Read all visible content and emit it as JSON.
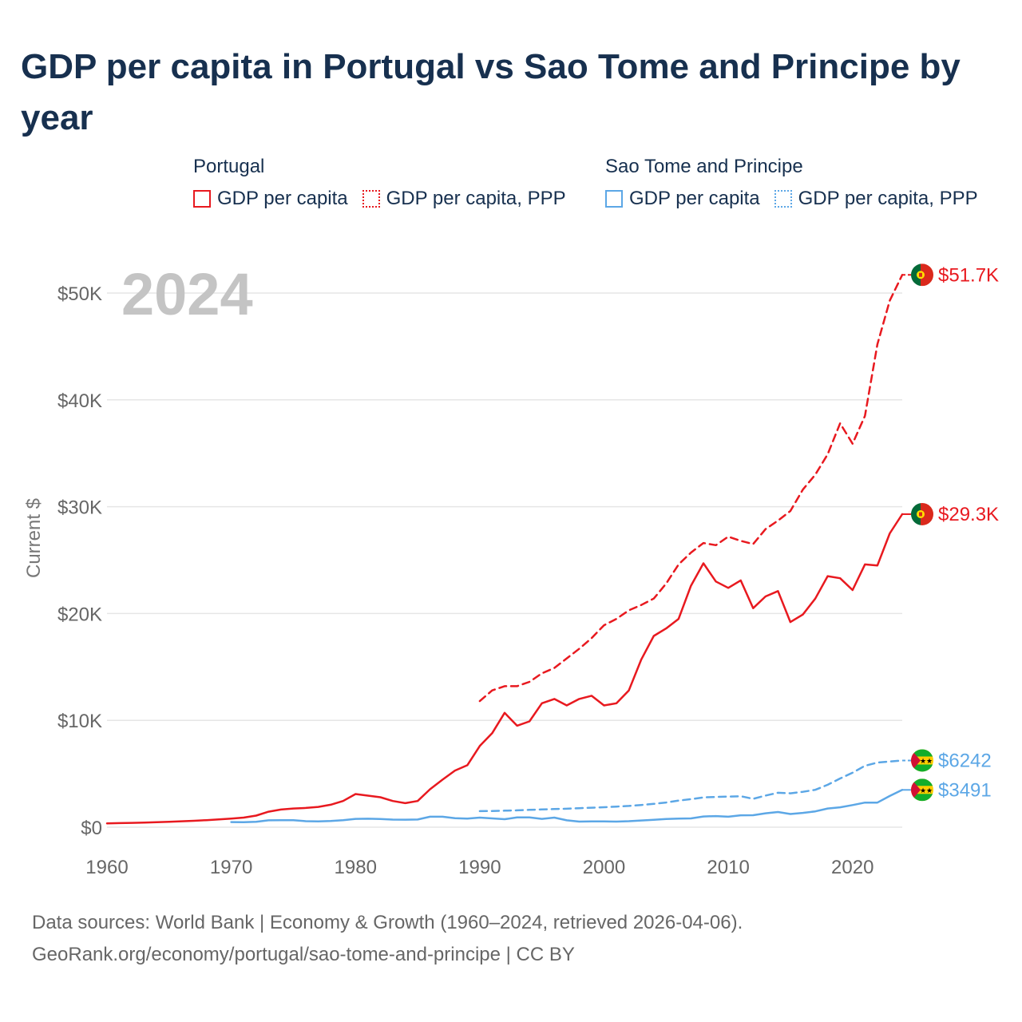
{
  "title": "GDP per capita in Portugal vs Sao Tome and Principe by year",
  "legend": [
    {
      "country": "Portugal",
      "items": [
        {
          "label": "GDP per capita",
          "style": "solid",
          "color": "#e8191f"
        },
        {
          "label": "GDP per capita, PPP",
          "style": "dotted",
          "color": "#e8191f"
        }
      ]
    },
    {
      "country": "Sao Tome and Principe",
      "items": [
        {
          "label": "GDP per capita",
          "style": "solid",
          "color": "#5ca7e6"
        },
        {
          "label": "GDP per capita, PPP",
          "style": "dotted",
          "color": "#5ca7e6"
        }
      ]
    }
  ],
  "chart_data": {
    "type": "line",
    "title": "GDP per capita in Portugal vs Sao Tome and Principe by year",
    "xlabel": "",
    "ylabel": "Current $",
    "xlim": [
      1960,
      2024
    ],
    "ylim": [
      0,
      50000
    ],
    "xticks": [
      1960,
      1970,
      1980,
      1990,
      2000,
      2010,
      2020
    ],
    "yticks": [
      {
        "value": 0,
        "label": "$0"
      },
      {
        "value": 10000,
        "label": "$10K"
      },
      {
        "value": 20000,
        "label": "$20K"
      },
      {
        "value": 30000,
        "label": "$30K"
      },
      {
        "value": 40000,
        "label": "$40K"
      },
      {
        "value": 50000,
        "label": "$50K"
      }
    ],
    "grid": true,
    "year_watermark": "2024",
    "series": [
      {
        "name": "Portugal GDP per capita",
        "country": "Portugal",
        "color": "#e8191f",
        "dash": "solid",
        "end_label": "$29.3K",
        "flag": "portugal",
        "x": [
          1960,
          1961,
          1962,
          1963,
          1964,
          1965,
          1966,
          1967,
          1968,
          1969,
          1970,
          1971,
          1972,
          1973,
          1974,
          1975,
          1976,
          1977,
          1978,
          1979,
          1980,
          1981,
          1982,
          1983,
          1984,
          1985,
          1986,
          1987,
          1988,
          1989,
          1990,
          1991,
          1992,
          1993,
          1994,
          1995,
          1996,
          1997,
          1998,
          1999,
          2000,
          2001,
          2002,
          2003,
          2004,
          2005,
          2006,
          2007,
          2008,
          2009,
          2010,
          2011,
          2012,
          2013,
          2014,
          2015,
          2016,
          2017,
          2018,
          2019,
          2020,
          2021,
          2022,
          2023,
          2024
        ],
        "values": [
          361,
          380,
          400,
          430,
          460,
          500,
          550,
          600,
          660,
          730,
          810,
          900,
          1080,
          1450,
          1650,
          1750,
          1800,
          1900,
          2100,
          2450,
          3100,
          2950,
          2800,
          2450,
          2250,
          2450,
          3550,
          4450,
          5300,
          5800,
          7600,
          8800,
          10700,
          9500,
          9900,
          11600,
          12000,
          11400,
          12000,
          12300,
          11400,
          11600,
          12800,
          15700,
          17900,
          18600,
          19500,
          22600,
          24700,
          23000,
          22400,
          23100,
          20500,
          21600,
          22100,
          19200,
          19900,
          21400,
          23500,
          23300,
          22200,
          24600,
          24500,
          27500,
          29300
        ]
      },
      {
        "name": "Portugal GDP per capita, PPP",
        "country": "Portugal",
        "color": "#e8191f",
        "dash": "dashed",
        "end_label": "$51.7K",
        "flag": "portugal",
        "x": [
          1990,
          1991,
          1992,
          1993,
          1994,
          1995,
          1996,
          1997,
          1998,
          1999,
          2000,
          2001,
          2002,
          2003,
          2004,
          2005,
          2006,
          2007,
          2008,
          2009,
          2010,
          2011,
          2012,
          2013,
          2014,
          2015,
          2016,
          2017,
          2018,
          2019,
          2020,
          2021,
          2022,
          2023,
          2024
        ],
        "values": [
          11800,
          12800,
          13200,
          13200,
          13600,
          14400,
          14900,
          15800,
          16700,
          17700,
          18900,
          19500,
          20300,
          20800,
          21400,
          22800,
          24600,
          25700,
          26600,
          26400,
          27200,
          26800,
          26500,
          27900,
          28700,
          29600,
          31600,
          33000,
          34900,
          37800,
          35900,
          38500,
          45200,
          49300,
          51700
        ]
      },
      {
        "name": "Sao Tome and Principe GDP per capita",
        "country": "Sao Tome and Principe",
        "color": "#5ca7e6",
        "dash": "solid",
        "end_label": "$3491",
        "flag": "sao-tome",
        "x": [
          1970,
          1971,
          1972,
          1973,
          1974,
          1975,
          1976,
          1977,
          1978,
          1979,
          1980,
          1981,
          1982,
          1983,
          1984,
          1985,
          1986,
          1987,
          1988,
          1989,
          1990,
          1991,
          1992,
          1993,
          1994,
          1995,
          1996,
          1997,
          1998,
          1999,
          2000,
          2001,
          2002,
          2003,
          2004,
          2005,
          2006,
          2007,
          2008,
          2009,
          2010,
          2011,
          2012,
          2013,
          2014,
          2015,
          2016,
          2017,
          2018,
          2019,
          2020,
          2021,
          2022,
          2023,
          2024
        ],
        "values": [
          480,
          470,
          500,
          640,
          660,
          650,
          560,
          540,
          580,
          660,
          780,
          790,
          760,
          710,
          700,
          720,
          980,
          980,
          840,
          800,
          900,
          820,
          750,
          910,
          920,
          780,
          900,
          640,
          520,
          540,
          540,
          520,
          560,
          630,
          690,
          760,
          810,
          820,
          1000,
          1040,
          980,
          1110,
          1120,
          1300,
          1420,
          1230,
          1340,
          1480,
          1750,
          1860,
          2070,
          2300,
          2300,
          2920,
          3491
        ]
      },
      {
        "name": "Sao Tome and Principe GDP per capita, PPP",
        "country": "Sao Tome and Principe",
        "color": "#5ca7e6",
        "dash": "dashed",
        "end_label": "$6242",
        "flag": "sao-tome",
        "x": [
          1990,
          1991,
          1992,
          1993,
          1994,
          1995,
          1996,
          1997,
          1998,
          1999,
          2000,
          2001,
          2002,
          2003,
          2004,
          2005,
          2006,
          2007,
          2008,
          2009,
          2010,
          2011,
          2012,
          2013,
          2014,
          2015,
          2016,
          2017,
          2018,
          2019,
          2020,
          2021,
          2022,
          2023,
          2024
        ],
        "values": [
          1500,
          1520,
          1550,
          1580,
          1620,
          1660,
          1700,
          1730,
          1780,
          1820,
          1870,
          1930,
          1990,
          2080,
          2180,
          2310,
          2490,
          2620,
          2790,
          2830,
          2860,
          2900,
          2650,
          2960,
          3220,
          3170,
          3310,
          3500,
          3970,
          4560,
          5100,
          5750,
          6050,
          6150,
          6242
        ]
      }
    ]
  },
  "footer": {
    "line1": "Data sources: World Bank | Economy & Growth (1960–2024, retrieved 2026-04-06).",
    "line2": "GeoRank.org/economy/portugal/sao-tome-and-principe | CC BY"
  }
}
